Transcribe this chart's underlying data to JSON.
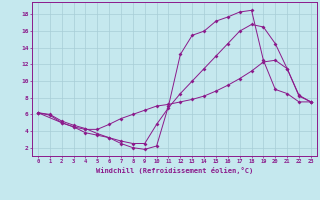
{
  "xlabel": "Windchill (Refroidissement éolien,°C)",
  "xlim": [
    -0.5,
    23.5
  ],
  "ylim": [
    1.0,
    19.5
  ],
  "xticks": [
    0,
    1,
    2,
    3,
    4,
    5,
    6,
    7,
    8,
    9,
    10,
    11,
    12,
    13,
    14,
    15,
    16,
    17,
    18,
    19,
    20,
    21,
    22,
    23
  ],
  "yticks": [
    2,
    4,
    6,
    8,
    10,
    12,
    14,
    16,
    18
  ],
  "bg_color": "#c5e8ee",
  "grid_color": "#a8cdd6",
  "line_color": "#8b1a8b",
  "line1_x": [
    0,
    1,
    2,
    3,
    4,
    5,
    6,
    7,
    8,
    9,
    10,
    11,
    12,
    13,
    14,
    15,
    16,
    17,
    18,
    19,
    20,
    21,
    22,
    23
  ],
  "line1_y": [
    6.2,
    6.0,
    5.2,
    4.7,
    4.3,
    3.7,
    3.2,
    2.5,
    2.0,
    1.8,
    2.2,
    7.0,
    13.2,
    15.5,
    16.0,
    17.2,
    17.7,
    18.3,
    18.5,
    12.5,
    9.0,
    8.5,
    7.5,
    7.5
  ],
  "line2_x": [
    0,
    1,
    2,
    3,
    4,
    5,
    6,
    7,
    8,
    9,
    10,
    11,
    12,
    13,
    14,
    15,
    16,
    17,
    18,
    19,
    20,
    21,
    22,
    23
  ],
  "line2_y": [
    6.2,
    5.9,
    5.0,
    4.5,
    3.8,
    3.5,
    3.2,
    2.8,
    2.5,
    2.5,
    4.8,
    6.8,
    8.5,
    10.0,
    11.5,
    13.0,
    14.5,
    16.0,
    16.8,
    16.5,
    14.5,
    11.5,
    8.2,
    7.5
  ],
  "line3_x": [
    0,
    2,
    3,
    4,
    5,
    6,
    7,
    8,
    9,
    10,
    11,
    12,
    13,
    14,
    15,
    16,
    17,
    18,
    19,
    20,
    21,
    22,
    23
  ],
  "line3_y": [
    6.2,
    5.0,
    4.5,
    4.2,
    4.2,
    4.8,
    5.5,
    6.0,
    6.5,
    7.0,
    7.2,
    7.5,
    7.8,
    8.2,
    8.8,
    9.5,
    10.3,
    11.2,
    12.3,
    12.5,
    11.5,
    8.3,
    7.5
  ]
}
